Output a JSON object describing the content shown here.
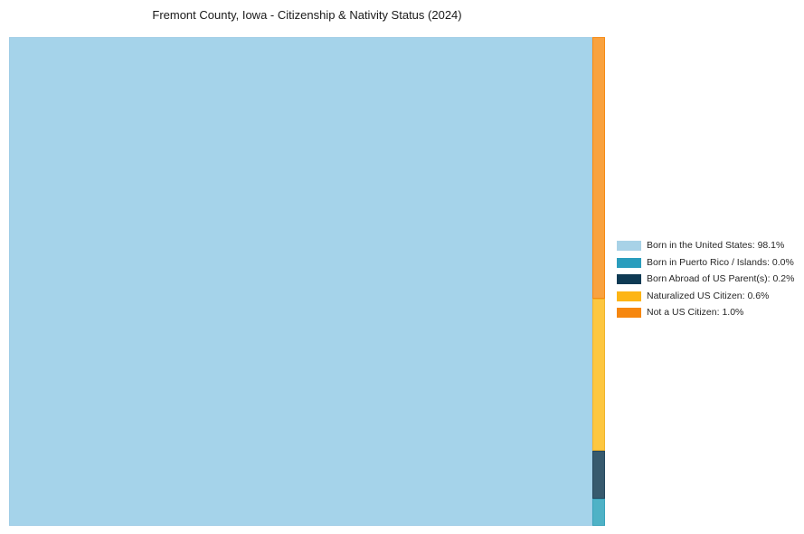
{
  "title": "Fremont County, Iowa - Citizenship & Nativity Status (2024)",
  "chart_data": {
    "type": "treemap",
    "title": "Fremont County, Iowa - Citizenship & Nativity Status (2024)",
    "categories": [
      "Born in the United States",
      "Born in Puerto Rico / Islands",
      "Born Abroad of US Parent(s)",
      "Naturalized US Citizen",
      "Not a US Citizen"
    ],
    "values": [
      98.1,
      0.0,
      0.2,
      0.6,
      1.0
    ],
    "unit": "%",
    "legend_position": "right-center",
    "layout": "large tile left for majority share, thin vertical strip on right split top-to-bottom: Not a US Citizen, Naturalized US Citizen, Born Abroad of US Parent(s), Born in Puerto Rico / Islands"
  },
  "tiles": [
    {
      "name": "Born in the United States",
      "value": "98.1%",
      "fill": "#a5d3ea",
      "border": "#a0cde6"
    },
    {
      "name": "Not a US Citizen",
      "value": "1.0%",
      "fill": "#f9a23f",
      "border": "#f68a14"
    },
    {
      "name": "Naturalized US Citizen",
      "value": "0.6%",
      "fill": "#fdc740",
      "border": "#f0b42c"
    },
    {
      "name": "Born Abroad of US Parent(s)",
      "value": "0.2%",
      "fill": "#375a6e",
      "border": "#25485e"
    },
    {
      "name": "Born in Puerto Rico / Islands",
      "value": "0.0%",
      "fill": "#4fb2c6",
      "border": "#3aa3bb"
    }
  ],
  "legend": {
    "items": [
      {
        "label": "Born in the United States: 98.1%",
        "color": "#a8d2e7"
      },
      {
        "label": "Born in Puerto Rico / Islands: 0.0%",
        "color": "#2a9dbd"
      },
      {
        "label": "Born Abroad of US Parent(s): 0.2%",
        "color": "#0e3a54"
      },
      {
        "label": "Naturalized US Citizen: 0.6%",
        "color": "#fdb515"
      },
      {
        "label": "Not a US Citizen: 1.0%",
        "color": "#f6870f"
      }
    ]
  }
}
